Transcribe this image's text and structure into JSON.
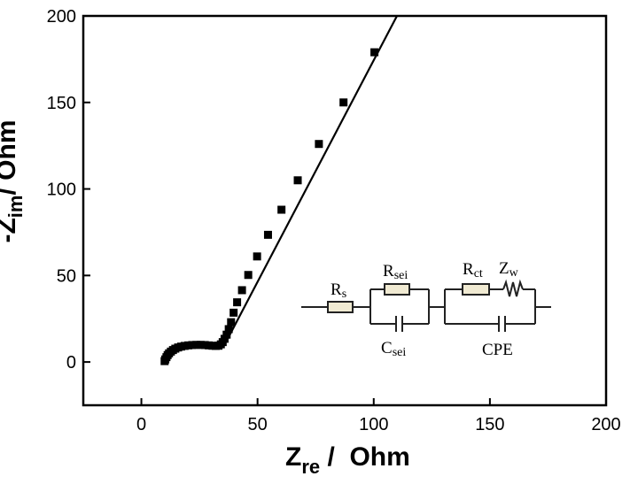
{
  "chart_data": {
    "type": "scatter",
    "title": "",
    "xlabel": {
      "main": "Z",
      "sub": "re",
      "rest": " /  Ohm"
    },
    "ylabel": {
      "main": "-Z",
      "sub": "im",
      "rest": "/ Ohm"
    },
    "xlim": [
      -25,
      200
    ],
    "ylim": [
      -25,
      200
    ],
    "xticks": [
      0,
      50,
      100,
      150,
      200
    ],
    "yticks": [
      0,
      50,
      100,
      150,
      200
    ],
    "grid": false,
    "series": [
      {
        "marker": "square",
        "color": "#000000",
        "x": [
          10.0,
          10.3,
          10.8,
          11.3,
          11.9,
          12.7,
          13.6,
          14.6,
          15.8,
          17.1,
          18.6,
          20.2,
          21.9,
          23.7,
          25.5,
          27.3,
          29.0,
          30.6,
          32.0,
          33.2,
          34.2,
          35.0,
          35.8,
          36.7,
          37.6,
          38.6,
          39.7,
          41.2,
          43.3,
          46.0,
          49.8,
          54.5,
          60.3,
          67.3,
          76.4,
          87.0,
          100.3
        ],
        "y": [
          0.5,
          1.5,
          2.8,
          4.0,
          5.0,
          6.0,
          6.9,
          7.7,
          8.4,
          8.9,
          9.3,
          9.6,
          9.8,
          9.9,
          9.9,
          9.8,
          9.6,
          9.4,
          9.3,
          9.4,
          10.2,
          11.5,
          13.4,
          15.8,
          19.0,
          23.0,
          28.5,
          34.5,
          41.5,
          50.3,
          61.0,
          73.5,
          88.0,
          105.0,
          126.0,
          150.0,
          179.0
        ]
      }
    ],
    "fit_line": {
      "x": [
        37.0,
        110.0
      ],
      "y": [
        13.0,
        200.0
      ],
      "color": "#000000"
    }
  },
  "inset": {
    "r_s": {
      "main": "R",
      "sub": "s"
    },
    "r_sei": {
      "main": "R",
      "sub": "sei"
    },
    "c_sei": {
      "main": "C",
      "sub": "sei"
    },
    "r_ct": {
      "main": "R",
      "sub": "ct"
    },
    "z_w": {
      "main": "Z",
      "sub": "w"
    },
    "cpe": "CPE",
    "resistor_fill": "#f0ead2"
  }
}
